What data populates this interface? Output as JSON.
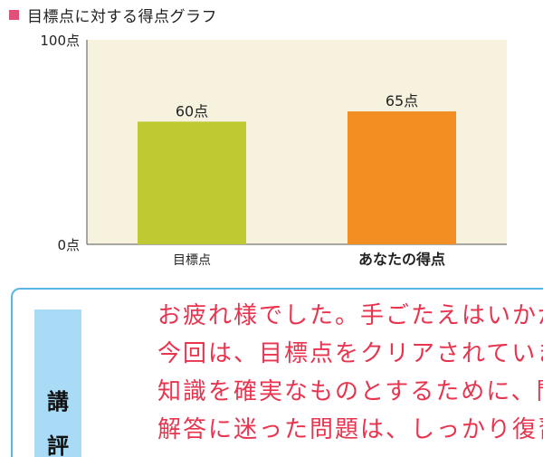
{
  "header": {
    "title": "目標点に対する得点グラフ"
  },
  "chart_data": {
    "type": "bar",
    "categories": [
      "目標点",
      "あなたの得点"
    ],
    "values": [
      60,
      65
    ],
    "value_labels": [
      "60点",
      "65点"
    ],
    "ylim": [
      0,
      100
    ],
    "y_tick_labels": [
      "100点",
      "0点"
    ],
    "colors": [
      "#bfca33",
      "#f28e22"
    ],
    "background": "#f6f2de",
    "grid": false
  },
  "comment": {
    "label_chars": [
      "講",
      "評"
    ],
    "lines": [
      "お疲れ様でした。手ごたえはいかがで",
      "今回は、目標点をクリアされています。",
      "知識を確実なものとするために、問",
      "解答に迷った問題は、しっかり復習"
    ]
  }
}
